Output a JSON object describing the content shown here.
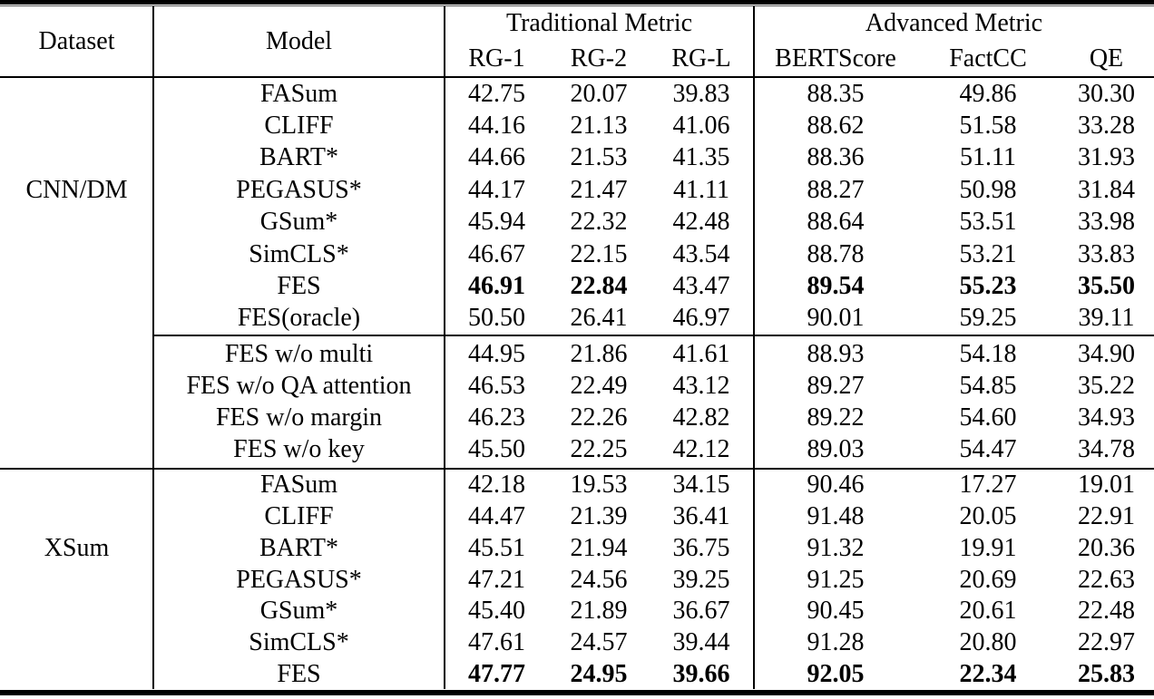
{
  "header": {
    "dataset_label": "Dataset",
    "model_label": "Model",
    "traditional_group": "Traditional Metric",
    "advanced_group": "Advanced Metric",
    "metric_labels": [
      "RG-1",
      "RG-2",
      "RG-L",
      "BERTScore",
      "FactCC",
      "QE"
    ]
  },
  "sections": [
    {
      "dataset": "CNN/DM",
      "label_row_index": 3,
      "separator_before": "none",
      "rows": [
        {
          "model": "FASum",
          "values": [
            "42.75",
            "20.07",
            "39.83",
            "88.35",
            "49.86",
            "30.30"
          ],
          "bold": [
            0,
            0,
            0,
            0,
            0,
            0
          ]
        },
        {
          "model": "CLIFF",
          "values": [
            "44.16",
            "21.13",
            "41.06",
            "88.62",
            "51.58",
            "33.28"
          ],
          "bold": [
            0,
            0,
            0,
            0,
            0,
            0
          ]
        },
        {
          "model": "BART*",
          "values": [
            "44.66",
            "21.53",
            "41.35",
            "88.36",
            "51.11",
            "31.93"
          ],
          "bold": [
            0,
            0,
            0,
            0,
            0,
            0
          ]
        },
        {
          "model": "PEGASUS*",
          "values": [
            "44.17",
            "21.47",
            "41.11",
            "88.27",
            "50.98",
            "31.84"
          ],
          "bold": [
            0,
            0,
            0,
            0,
            0,
            0
          ]
        },
        {
          "model": "GSum*",
          "values": [
            "45.94",
            "22.32",
            "42.48",
            "88.64",
            "53.51",
            "33.98"
          ],
          "bold": [
            0,
            0,
            0,
            0,
            0,
            0
          ]
        },
        {
          "model": "SimCLS*",
          "values": [
            "46.67",
            "22.15",
            "43.54",
            "88.78",
            "53.21",
            "33.83"
          ],
          "bold": [
            0,
            0,
            0,
            0,
            0,
            0
          ]
        },
        {
          "model": "FES",
          "values": [
            "46.91",
            "22.84",
            "43.47",
            "89.54",
            "55.23",
            "35.50"
          ],
          "bold": [
            1,
            1,
            0,
            1,
            1,
            1
          ]
        },
        {
          "model": "FES(oracle)",
          "values": [
            "50.50",
            "26.41",
            "46.97",
            "90.01",
            "59.25",
            "39.11"
          ],
          "bold": [
            0,
            0,
            0,
            0,
            0,
            0
          ]
        }
      ]
    },
    {
      "dataset": "",
      "label_row_index": -1,
      "separator_before": "partial",
      "rows": [
        {
          "model": "FES w/o multi",
          "values": [
            "44.95",
            "21.86",
            "41.61",
            "88.93",
            "54.18",
            "34.90"
          ],
          "bold": [
            0,
            0,
            0,
            0,
            0,
            0
          ]
        },
        {
          "model": "FES w/o QA attention",
          "values": [
            "46.53",
            "22.49",
            "43.12",
            "89.27",
            "54.85",
            "35.22"
          ],
          "bold": [
            0,
            0,
            0,
            0,
            0,
            0
          ]
        },
        {
          "model": "FES w/o margin",
          "values": [
            "46.23",
            "22.26",
            "42.82",
            "89.22",
            "54.60",
            "34.93"
          ],
          "bold": [
            0,
            0,
            0,
            0,
            0,
            0
          ]
        },
        {
          "model": "FES w/o key",
          "values": [
            "45.50",
            "22.25",
            "42.12",
            "89.03",
            "54.47",
            "34.78"
          ],
          "bold": [
            0,
            0,
            0,
            0,
            0,
            0
          ]
        }
      ]
    },
    {
      "dataset": "XSum",
      "label_row_index": 2,
      "separator_before": "full",
      "rows": [
        {
          "model": "FASum",
          "values": [
            "42.18",
            "19.53",
            "34.15",
            "90.46",
            "17.27",
            "19.01"
          ],
          "bold": [
            0,
            0,
            0,
            0,
            0,
            0
          ]
        },
        {
          "model": "CLIFF",
          "values": [
            "44.47",
            "21.39",
            "36.41",
            "91.48",
            "20.05",
            "22.91"
          ],
          "bold": [
            0,
            0,
            0,
            0,
            0,
            0
          ]
        },
        {
          "model": "BART*",
          "values": [
            "45.51",
            "21.94",
            "36.75",
            "91.32",
            "19.91",
            "20.36"
          ],
          "bold": [
            0,
            0,
            0,
            0,
            0,
            0
          ]
        },
        {
          "model": "PEGASUS*",
          "values": [
            "47.21",
            "24.56",
            "39.25",
            "91.25",
            "20.69",
            "22.63"
          ],
          "bold": [
            0,
            0,
            0,
            0,
            0,
            0
          ]
        },
        {
          "model": "GSum*",
          "values": [
            "45.40",
            "21.89",
            "36.67",
            "90.45",
            "20.61",
            "22.48"
          ],
          "bold": [
            0,
            0,
            0,
            0,
            0,
            0
          ]
        },
        {
          "model": "SimCLS*",
          "values": [
            "47.61",
            "24.57",
            "39.44",
            "91.28",
            "20.80",
            "22.97"
          ],
          "bold": [
            0,
            0,
            0,
            0,
            0,
            0
          ]
        },
        {
          "model": "FES",
          "values": [
            "47.77",
            "24.95",
            "39.66",
            "92.05",
            "22.34",
            "25.83"
          ],
          "bold": [
            1,
            1,
            1,
            1,
            1,
            1
          ]
        }
      ]
    }
  ]
}
